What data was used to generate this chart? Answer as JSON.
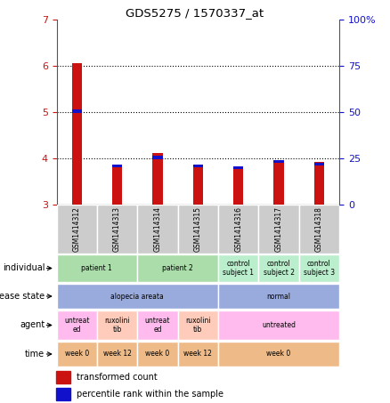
{
  "title": "GDS5275 / 1570337_at",
  "samples": [
    "GSM1414312",
    "GSM1414313",
    "GSM1414314",
    "GSM1414315",
    "GSM1414316",
    "GSM1414317",
    "GSM1414318"
  ],
  "red_values": [
    6.05,
    3.85,
    4.12,
    3.87,
    3.82,
    3.97,
    3.92
  ],
  "blue_values": [
    5.02,
    3.83,
    4.02,
    3.84,
    3.8,
    3.94,
    3.88
  ],
  "ylim_left": [
    3,
    7
  ],
  "yticks_left": [
    3,
    4,
    5,
    6,
    7
  ],
  "ylim_right": [
    0,
    100
  ],
  "yticks_right": [
    0,
    25,
    50,
    75,
    100
  ],
  "ytick_right_labels": [
    "0",
    "25",
    "50",
    "75",
    "100%"
  ],
  "bar_base": 3.0,
  "annotation_rows": [
    {
      "label": "individual",
      "cells": [
        {
          "text": "patient 1",
          "span": 2,
          "color": "#aaddaa"
        },
        {
          "text": "patient 2",
          "span": 2,
          "color": "#aaddaa"
        },
        {
          "text": "control\nsubject 1",
          "span": 1,
          "color": "#bbeecc"
        },
        {
          "text": "control\nsubject 2",
          "span": 1,
          "color": "#bbeecc"
        },
        {
          "text": "control\nsubject 3",
          "span": 1,
          "color": "#bbeecc"
        }
      ]
    },
    {
      "label": "disease state",
      "cells": [
        {
          "text": "alopecia areata",
          "span": 4,
          "color": "#99aadd"
        },
        {
          "text": "normal",
          "span": 3,
          "color": "#99aadd"
        }
      ]
    },
    {
      "label": "agent",
      "cells": [
        {
          "text": "untreat\ned",
          "span": 1,
          "color": "#ffbbee"
        },
        {
          "text": "ruxolini\ntib",
          "span": 1,
          "color": "#ffccbb"
        },
        {
          "text": "untreat\ned",
          "span": 1,
          "color": "#ffbbee"
        },
        {
          "text": "ruxolini\ntib",
          "span": 1,
          "color": "#ffccbb"
        },
        {
          "text": "untreated",
          "span": 3,
          "color": "#ffbbee"
        }
      ]
    },
    {
      "label": "time",
      "cells": [
        {
          "text": "week 0",
          "span": 1,
          "color": "#eebb88"
        },
        {
          "text": "week 12",
          "span": 1,
          "color": "#eebb88"
        },
        {
          "text": "week 0",
          "span": 1,
          "color": "#eebb88"
        },
        {
          "text": "week 12",
          "span": 1,
          "color": "#eebb88"
        },
        {
          "text": "week 0",
          "span": 3,
          "color": "#eebb88"
        }
      ]
    }
  ],
  "legend_red": "transformed count",
  "legend_blue": "percentile rank within the sample",
  "bg_color": "#ffffff",
  "bar_color_red": "#cc1111",
  "bar_color_blue": "#1111cc",
  "label_color_left": "#cc1111",
  "label_color_right": "#1111cc",
  "sample_label_bg": "#cccccc"
}
